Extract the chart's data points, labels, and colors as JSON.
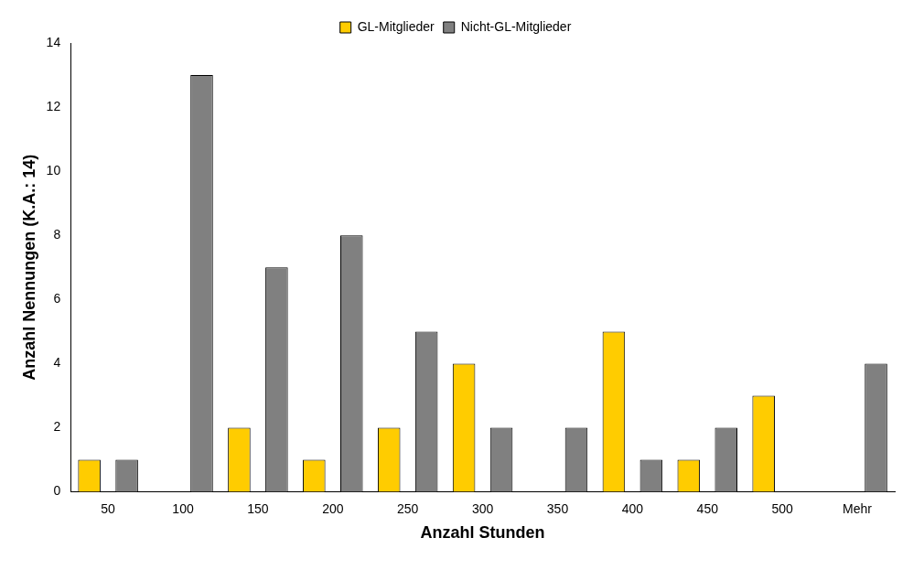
{
  "chart_data": {
    "type": "bar",
    "xlabel": "Anzahl Stunden",
    "ylabel": "Anzahl Nennungen (K.A.: 14)",
    "categories": [
      "50",
      "100",
      "150",
      "200",
      "250",
      "300",
      "350",
      "400",
      "450",
      "500",
      "Mehr"
    ],
    "series": [
      {
        "name": "GL-Mitglieder",
        "color": "#ffcc00",
        "values": [
          1,
          0,
          2,
          1,
          2,
          4,
          0,
          5,
          1,
          3,
          0
        ]
      },
      {
        "name": "Nicht-GL-Mitglieder",
        "color": "#808080",
        "values": [
          1,
          13,
          7,
          8,
          5,
          2,
          2,
          1,
          2,
          0,
          4
        ]
      }
    ],
    "ylim": [
      0,
      14
    ],
    "yticks": [
      0,
      2,
      4,
      6,
      8,
      10,
      12,
      14
    ],
    "grid": false,
    "legend": "top"
  }
}
